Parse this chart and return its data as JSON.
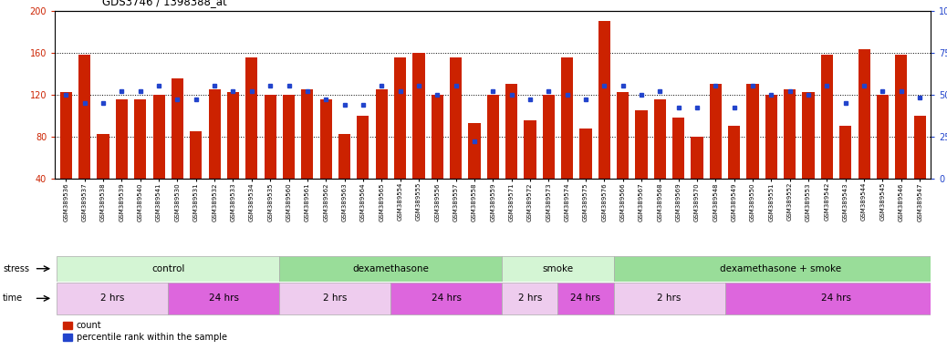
{
  "title": "GDS3746 / 1398388_at",
  "samples": [
    "GSM389536",
    "GSM389537",
    "GSM389538",
    "GSM389539",
    "GSM389540",
    "GSM389541",
    "GSM389530",
    "GSM389531",
    "GSM389532",
    "GSM389533",
    "GSM389534",
    "GSM389535",
    "GSM389560",
    "GSM389561",
    "GSM389562",
    "GSM389563",
    "GSM389564",
    "GSM389565",
    "GSM389554",
    "GSM389555",
    "GSM389556",
    "GSM389557",
    "GSM389558",
    "GSM389559",
    "GSM389571",
    "GSM389572",
    "GSM389573",
    "GSM389574",
    "GSM389575",
    "GSM389576",
    "GSM389566",
    "GSM389567",
    "GSM389568",
    "GSM389569",
    "GSM389570",
    "GSM389548",
    "GSM389549",
    "GSM389550",
    "GSM389551",
    "GSM389552",
    "GSM389553",
    "GSM389542",
    "GSM389543",
    "GSM389544",
    "GSM389545",
    "GSM389546",
    "GSM389547"
  ],
  "counts": [
    122,
    158,
    82,
    115,
    115,
    120,
    135,
    85,
    125,
    122,
    155,
    120,
    120,
    125,
    115,
    82,
    100,
    125,
    155,
    160,
    120,
    155,
    93,
    120,
    130,
    95,
    120,
    155,
    88,
    190,
    122,
    105,
    115,
    98,
    80,
    130,
    90,
    130,
    120,
    125,
    122,
    158,
    90,
    163,
    120,
    158,
    100
  ],
  "percentiles": [
    50,
    45,
    45,
    52,
    52,
    55,
    47,
    47,
    55,
    52,
    52,
    55,
    55,
    52,
    47,
    44,
    44,
    55,
    52,
    55,
    50,
    55,
    22,
    52,
    50,
    47,
    52,
    50,
    47,
    55,
    55,
    50,
    52,
    42,
    42,
    55,
    42,
    55,
    50,
    52,
    50,
    55,
    45,
    55,
    52,
    52,
    48
  ],
  "ylim_left": [
    40,
    200
  ],
  "ylim_right": [
    0,
    100
  ],
  "yticks_left": [
    40,
    80,
    120,
    160,
    200
  ],
  "yticks_right": [
    0,
    25,
    50,
    75,
    100
  ],
  "bar_color": "#cc2200",
  "dot_color": "#2244cc",
  "stress_groups": [
    {
      "label": "control",
      "start": 0,
      "end": 11,
      "color": "#d4f5d4"
    },
    {
      "label": "dexamethasone",
      "start": 12,
      "end": 23,
      "color": "#99dd99"
    },
    {
      "label": "smoke",
      "start": 24,
      "end": 29,
      "color": "#d4f5d4"
    },
    {
      "label": "dexamethasone + smoke",
      "start": 30,
      "end": 47,
      "color": "#99dd99"
    }
  ],
  "time_groups": [
    {
      "label": "2 hrs",
      "start": 0,
      "end": 5,
      "color": "#eeccee"
    },
    {
      "label": "24 hrs",
      "start": 6,
      "end": 11,
      "color": "#dd66dd"
    },
    {
      "label": "2 hrs",
      "start": 12,
      "end": 17,
      "color": "#eeccee"
    },
    {
      "label": "24 hrs",
      "start": 18,
      "end": 23,
      "color": "#dd66dd"
    },
    {
      "label": "2 hrs",
      "start": 24,
      "end": 26,
      "color": "#eeccee"
    },
    {
      "label": "24 hrs",
      "start": 27,
      "end": 29,
      "color": "#dd66dd"
    },
    {
      "label": "2 hrs",
      "start": 30,
      "end": 35,
      "color": "#eeccee"
    },
    {
      "label": "24 hrs",
      "start": 36,
      "end": 47,
      "color": "#dd66dd"
    }
  ]
}
